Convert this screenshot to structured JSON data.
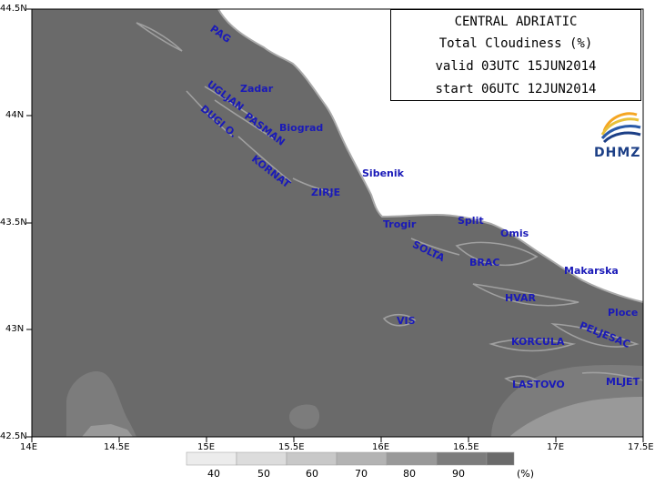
{
  "title_box": {
    "region": "CENTRAL ADRIATIC",
    "variable": "Total Cloudiness (%)",
    "valid": "valid 03UTC 15JUN2014",
    "start": "start 06UTC 12JUN2014"
  },
  "logo": {
    "text": "DHMZ",
    "icon": "dhmz-logo-icon"
  },
  "axes": {
    "x_ticks": [
      "14E",
      "14.5E",
      "15E",
      "15.5E",
      "16E",
      "16.5E",
      "17E",
      "17.5E"
    ],
    "y_ticks": [
      "44.5N",
      "44N",
      "43.5N",
      "43N",
      "42.5N"
    ]
  },
  "places": [
    {
      "name": "PAG"
    },
    {
      "name": "Zadar"
    },
    {
      "name": "UGLJAN"
    },
    {
      "name": "PASMAN"
    },
    {
      "name": "Biograd"
    },
    {
      "name": "DUGI O."
    },
    {
      "name": "KORNAT"
    },
    {
      "name": "ZIRJE"
    },
    {
      "name": "Sibenik"
    },
    {
      "name": "Trogir"
    },
    {
      "name": "Split"
    },
    {
      "name": "Omis"
    },
    {
      "name": "SOLTA"
    },
    {
      "name": "BRAC"
    },
    {
      "name": "Makarska"
    },
    {
      "name": "HVAR"
    },
    {
      "name": "Ploce"
    },
    {
      "name": "VIS"
    },
    {
      "name": "PELJESAC"
    },
    {
      "name": "KORCULA"
    },
    {
      "name": "LASTOVO"
    },
    {
      "name": "MLJET"
    }
  ],
  "colorbar": {
    "labels": [
      "40",
      "50",
      "60",
      "70",
      "80",
      "90"
    ],
    "unit": "(%)",
    "colors": [
      "#ececec",
      "#dcdcdc",
      "#c8c8c8",
      "#b3b3b3",
      "#999999",
      "#7c7c7c",
      "#6a6a6a"
    ]
  },
  "colors": {
    "overcast": "#6a6a6a",
    "land": "#ffffff",
    "coastline": "#aaaaaa",
    "place_labels": "#1a1ab8"
  }
}
